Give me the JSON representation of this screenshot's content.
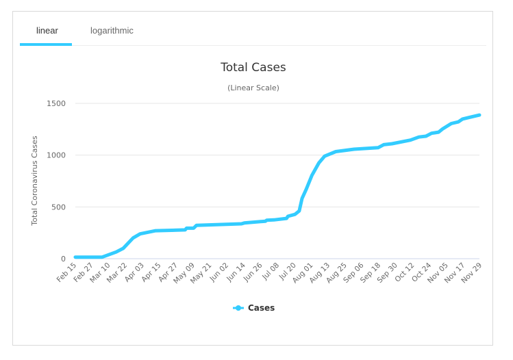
{
  "tabs": [
    {
      "label": "linear",
      "active": true
    },
    {
      "label": "logarithmic",
      "active": false
    }
  ],
  "chart_data": {
    "type": "line",
    "title": "Total Cases",
    "subtitle": "(Linear Scale)",
    "xlabel": "",
    "ylabel": "Total Coronavirus Cases",
    "ylim": [
      0,
      1500
    ],
    "yticks": [
      0,
      500,
      1000,
      1500
    ],
    "x_start_label": "Feb 15",
    "x_unit": "days since Feb 15",
    "xlim": [
      0,
      287
    ],
    "xtick_interval_days": 12,
    "xtick_labels": [
      "Feb 15",
      "Feb 27",
      "Mar 10",
      "Mar 22",
      "Apr 03",
      "Apr 15",
      "Apr 27",
      "May 09",
      "May 21",
      "Jun 02",
      "Jun 14",
      "Jun 26",
      "Jul 08",
      "Jul 20",
      "Aug 01",
      "Aug 13",
      "Aug 25",
      "Sep 06",
      "Sep 18",
      "Sep 30",
      "Oct 12",
      "Oct 24",
      "Nov 05",
      "Nov 17",
      "Nov 29"
    ],
    "grid": true,
    "legend_position": "bottom-center",
    "color": "#33ccff",
    "series": [
      {
        "name": "Cases",
        "points": [
          [
            0,
            15
          ],
          [
            19,
            15
          ],
          [
            29,
            65
          ],
          [
            34,
            100
          ],
          [
            41,
            200
          ],
          [
            46,
            240
          ],
          [
            57,
            270
          ],
          [
            78,
            278
          ],
          [
            79,
            295
          ],
          [
            84,
            295
          ],
          [
            86,
            322
          ],
          [
            118,
            337
          ],
          [
            120,
            345
          ],
          [
            135,
            362
          ],
          [
            136,
            372
          ],
          [
            141,
            375
          ],
          [
            150,
            389
          ],
          [
            151,
            410
          ],
          [
            156,
            428
          ],
          [
            159,
            461
          ],
          [
            161,
            582
          ],
          [
            164,
            670
          ],
          [
            168,
            805
          ],
          [
            170,
            853
          ],
          [
            173,
            925
          ],
          [
            177,
            990
          ],
          [
            185,
            1034
          ],
          [
            198,
            1057
          ],
          [
            215,
            1072
          ],
          [
            219,
            1101
          ],
          [
            225,
            1110
          ],
          [
            238,
            1145
          ],
          [
            244,
            1175
          ],
          [
            249,
            1183
          ],
          [
            253,
            1211
          ],
          [
            258,
            1222
          ],
          [
            261,
            1255
          ],
          [
            267,
            1305
          ],
          [
            272,
            1321
          ],
          [
            275,
            1349
          ],
          [
            280,
            1365
          ],
          [
            287,
            1387
          ]
        ]
      }
    ]
  }
}
